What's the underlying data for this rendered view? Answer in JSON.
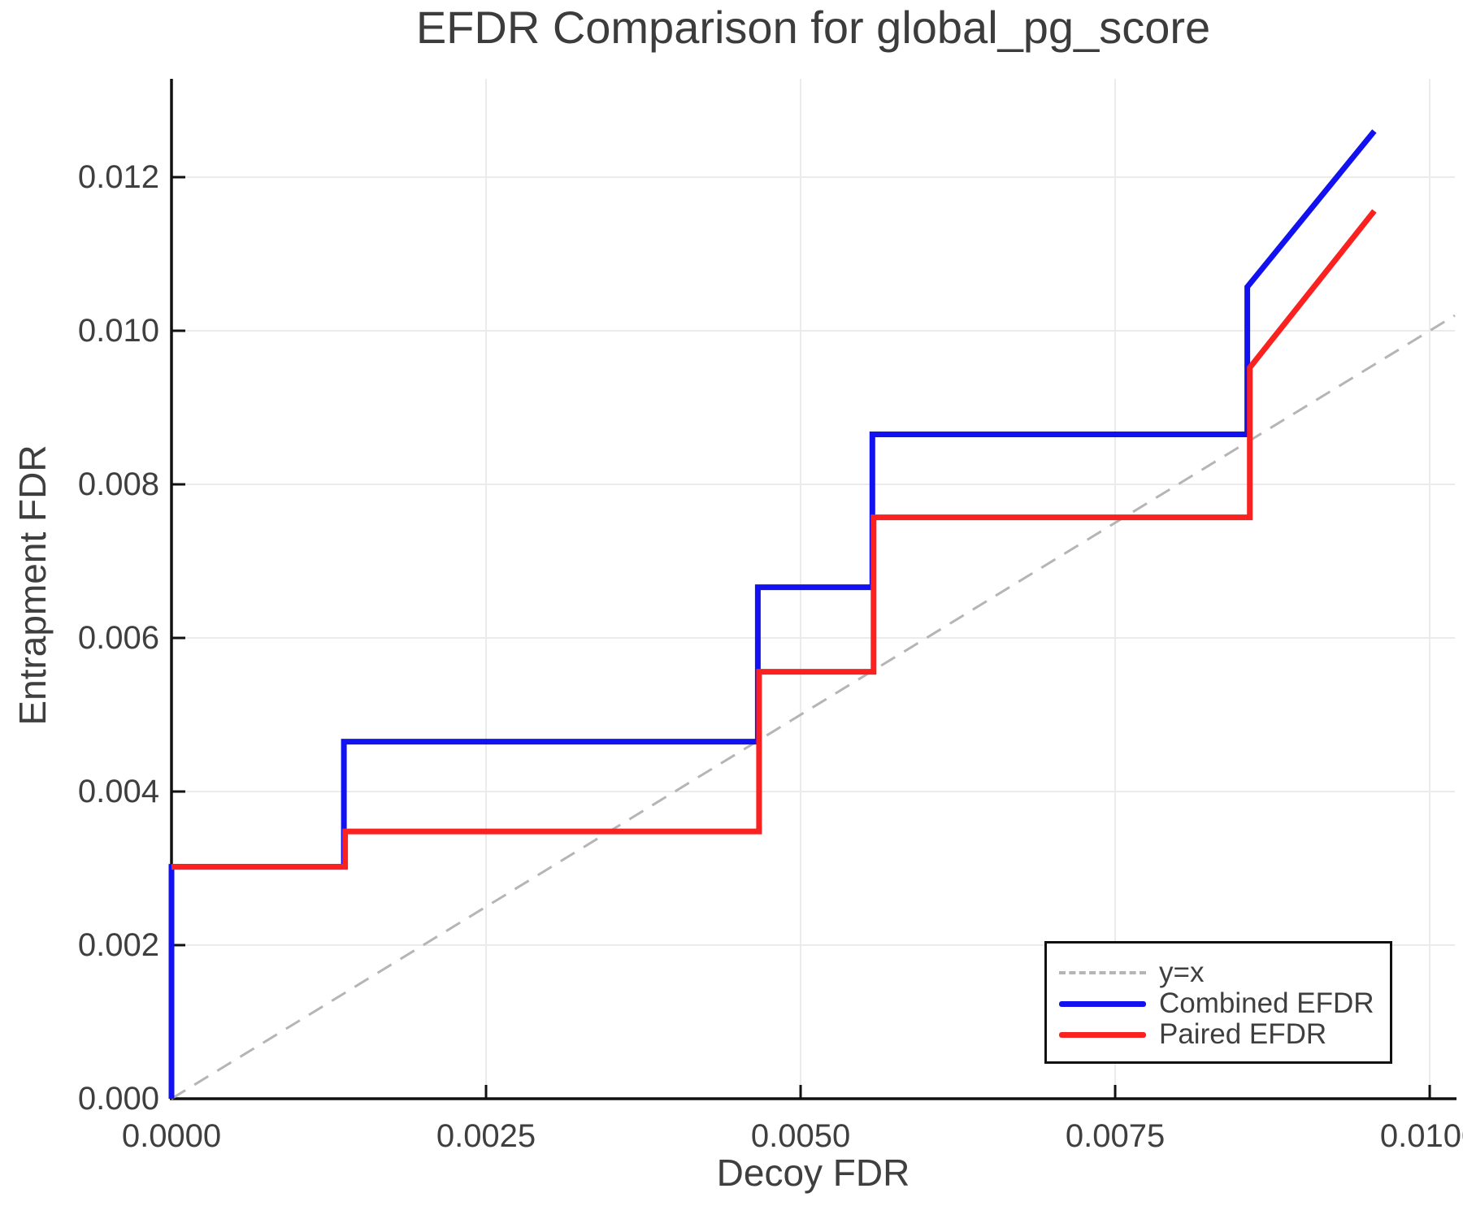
{
  "figure": {
    "title": "EFDR Comparison for global_pg_score",
    "xlabel": "Decoy FDR",
    "ylabel": "Entrapment FDR"
  },
  "colors": {
    "combined": "#1212f0",
    "paired": "#fa2121",
    "identity": "#b5b5b5",
    "grid": "#ebebeb",
    "axis": "#111111",
    "text": "#3f3f3f"
  },
  "chart_data": {
    "type": "line",
    "title": "EFDR Comparison for global_pg_score",
    "xlabel": "Decoy FDR",
    "ylabel": "Entrapment FDR",
    "xlim": [
      0,
      0.0102
    ],
    "ylim": [
      0,
      0.01328
    ],
    "grid": true,
    "legend_position": "lower right",
    "x_ticks": {
      "values": [
        0,
        0.0025,
        0.005,
        0.0075,
        0.01
      ],
      "labels": [
        "0.0000",
        "0.0025",
        "0.0050",
        "0.0075",
        "0.0100"
      ]
    },
    "y_ticks": {
      "values": [
        0,
        0.002,
        0.004,
        0.006,
        0.008,
        0.01,
        0.012
      ],
      "labels": [
        "0.000",
        "0.002",
        "0.004",
        "0.006",
        "0.008",
        "0.010",
        "0.012"
      ]
    },
    "series": [
      {
        "name": "y=x",
        "style": "dashed",
        "color": "#b5b5b5",
        "width": 3,
        "x": [
          0,
          0.0102
        ],
        "y": [
          0,
          0.0102
        ]
      },
      {
        "name": "Combined EFDR",
        "style": "solid",
        "color": "#1212f0",
        "width": 7,
        "x": [
          0,
          0,
          0.00137,
          0.00137,
          0.00466,
          0.00466,
          0.00557,
          0.00557,
          0.00855,
          0.00855,
          0.00956
        ],
        "y": [
          0,
          0.00302,
          0.00302,
          0.00465,
          0.00465,
          0.00666,
          0.00666,
          0.00865,
          0.00865,
          0.01057,
          0.0126
        ]
      },
      {
        "name": "Paired EFDR",
        "style": "solid",
        "color": "#fa2121",
        "width": 7,
        "x": [
          0,
          0.00138,
          0.00138,
          0.00467,
          0.00467,
          0.00558,
          0.00558,
          0.00857,
          0.00857,
          0.00956
        ],
        "y": [
          0.00302,
          0.00302,
          0.00348,
          0.00348,
          0.00556,
          0.00556,
          0.00757,
          0.00757,
          0.00952,
          0.01156
        ]
      }
    ]
  }
}
